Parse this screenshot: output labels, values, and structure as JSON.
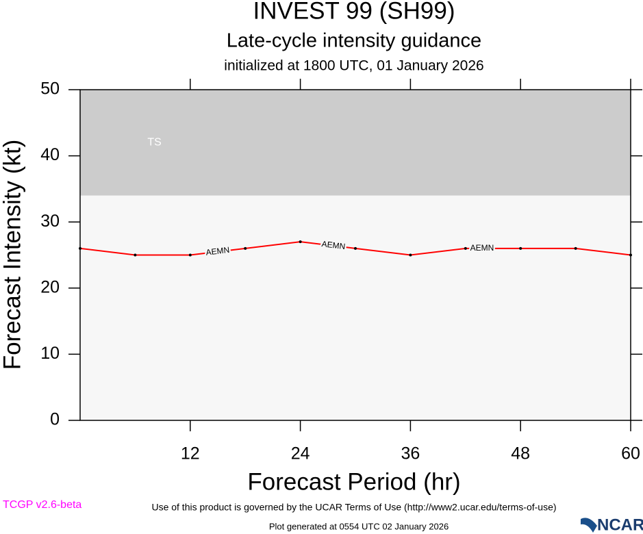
{
  "chart_data": {
    "type": "line",
    "title": "INVEST 99 (SH99)",
    "subtitle": "Late-cycle intensity guidance",
    "caption": "initialized at 1800 UTC, 01 January 2026",
    "x_label": "Forecast Period (hr)",
    "y_label": "Forecast Intensity (kt)",
    "x": [
      0,
      6,
      12,
      18,
      24,
      30,
      36,
      42,
      48,
      54,
      60
    ],
    "series": [
      {
        "name": "AEMN",
        "color": "#ff0000",
        "values": [
          26,
          25,
          25,
          26,
          27,
          26,
          25,
          26,
          26,
          26,
          25
        ]
      }
    ],
    "xlim": [
      0,
      60
    ],
    "xticks": [
      12,
      24,
      36,
      48,
      60
    ],
    "ylim": [
      0,
      50
    ],
    "yticks": [
      0,
      10,
      20,
      30,
      40,
      50
    ],
    "bands": [
      {
        "label": "TS",
        "from": 34,
        "to": 50,
        "color": "#cccccc"
      }
    ],
    "plot_background": "#f7f7f7"
  },
  "footer": {
    "terms": "Use of this product is governed by the UCAR Terms of Use (http://www2.ucar.edu/terms-of-use)",
    "version": "TCGP v2.6-beta",
    "generated": "Plot generated at 0554 UTC   02 January 2026",
    "logo": "NCAR"
  }
}
